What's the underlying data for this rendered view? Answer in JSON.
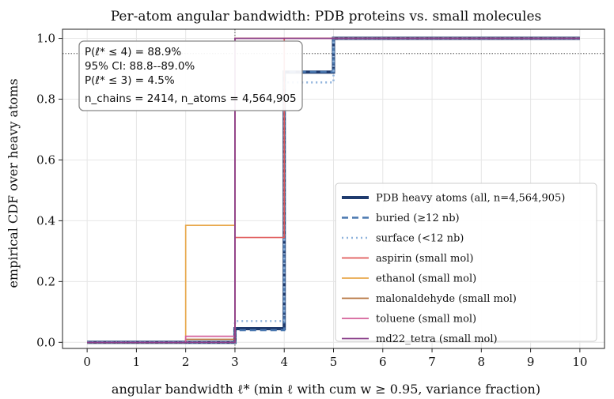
{
  "chart_data": {
    "type": "line",
    "title": "Per-atom angular bandwidth: PDB proteins vs. small molecules",
    "xlabel": "angular bandwidth ℓ* (min ℓ with cum w ≥ 0.95, variance fraction)",
    "ylabel": "empirical CDF over heavy atoms",
    "xlim": [
      -0.5,
      10.5
    ],
    "ylim": [
      -0.02,
      1.03
    ],
    "x_ticks": [
      "0",
      "1",
      "2",
      "3",
      "4",
      "5",
      "6",
      "7",
      "8",
      "9",
      "10"
    ],
    "y_ticks": [
      "0.0",
      "0.2",
      "0.4",
      "0.6",
      "0.8",
      "1.0"
    ],
    "reference_lines": {
      "vertical_x": 3,
      "horizontal_y": 0.95
    },
    "annotation": {
      "line1": "P(ℓ* ≤ 4) = 88.9%",
      "line2": "95% CI: 88.8--89.0%",
      "line3": "P(ℓ* ≤ 3) = 4.5%",
      "line4": "n_chains = 2414, n_atoms = 4,564,905"
    },
    "legend_position": "lower-right",
    "series": [
      {
        "name": "PDB heavy atoms (all, n=4,564,905)",
        "color": "#1f3b6e",
        "style": "solid-thick",
        "x": [
          0,
          1,
          2,
          3,
          4,
          5,
          6,
          7,
          8,
          9,
          10
        ],
        "y": [
          0,
          0,
          0,
          0.045,
          0.889,
          1.0,
          1.0,
          1.0,
          1.0,
          1.0,
          1.0
        ]
      },
      {
        "name": "buried (≥12 nb)",
        "color": "#4a78b0",
        "style": "dashed",
        "x": [
          0,
          1,
          2,
          3,
          4,
          5,
          6,
          7,
          8,
          9,
          10
        ],
        "y": [
          0,
          0,
          0,
          0.04,
          0.89,
          1.0,
          1.0,
          1.0,
          1.0,
          1.0,
          1.0
        ]
      },
      {
        "name": "surface (<12 nb)",
        "color": "#8fb3dc",
        "style": "dotted",
        "x": [
          0,
          1,
          2,
          3,
          4,
          5,
          6,
          7,
          8,
          9,
          10
        ],
        "y": [
          0,
          0,
          0,
          0.07,
          0.855,
          1.0,
          1.0,
          1.0,
          1.0,
          1.0,
          1.0
        ]
      },
      {
        "name": "aspirin (small mol)",
        "color": "#e05a5a",
        "style": "solid",
        "x": [
          0,
          1,
          2,
          3,
          4,
          5,
          6,
          7,
          8,
          9,
          10
        ],
        "y": [
          0,
          0,
          0,
          0.345,
          1.0,
          1.0,
          1.0,
          1.0,
          1.0,
          1.0,
          1.0
        ]
      },
      {
        "name": "ethanol (small mol)",
        "color": "#e8a84c",
        "style": "solid",
        "x": [
          0,
          1,
          2,
          3,
          4,
          5,
          6,
          7,
          8,
          9,
          10
        ],
        "y": [
          0,
          0,
          0.385,
          1.0,
          1.0,
          1.0,
          1.0,
          1.0,
          1.0,
          1.0,
          1.0
        ]
      },
      {
        "name": "malonaldehyde (small mol)",
        "color": "#b5733c",
        "style": "solid",
        "x": [
          0,
          1,
          2,
          3,
          4,
          5,
          6,
          7,
          8,
          9,
          10
        ],
        "y": [
          0,
          0,
          0.01,
          1.0,
          1.0,
          1.0,
          1.0,
          1.0,
          1.0,
          1.0,
          1.0
        ]
      },
      {
        "name": "toluene (small mol)",
        "color": "#d4609a",
        "style": "solid",
        "x": [
          0,
          1,
          2,
          3,
          4,
          5,
          6,
          7,
          8,
          9,
          10
        ],
        "y": [
          0,
          0,
          0.02,
          1.0,
          1.0,
          1.0,
          1.0,
          1.0,
          1.0,
          1.0,
          1.0
        ]
      },
      {
        "name": "md22_tetra (small mol)",
        "color": "#8a3f8a",
        "style": "solid",
        "x": [
          0,
          1,
          2,
          3,
          4,
          5,
          6,
          7,
          8,
          9,
          10
        ],
        "y": [
          0,
          0,
          0,
          1.0,
          1.0,
          1.0,
          1.0,
          1.0,
          1.0,
          1.0,
          1.0
        ]
      }
    ]
  }
}
